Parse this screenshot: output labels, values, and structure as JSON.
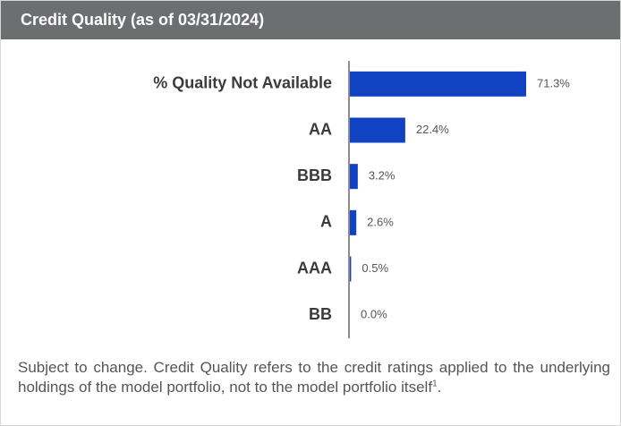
{
  "chart_data": {
    "type": "bar",
    "orientation": "horizontal",
    "title": "Credit Quality (as of 03/31/2024)",
    "categories": [
      "% Quality Not Available",
      "AA",
      "BBB",
      "A",
      "AAA",
      "BB"
    ],
    "values": [
      71.3,
      22.4,
      3.2,
      2.6,
      0.5,
      0.0
    ],
    "value_labels": [
      "71.3%",
      "22.4%",
      "3.2%",
      "2.6%",
      "0.5%",
      "0.0%"
    ],
    "color": "#1142c2",
    "footnote": {
      "text": "Subject to change. Credit Quality refers to the credit ratings applied to the underlying holdings of the model portfolio, not to the model portfolio itself",
      "sup": "1",
      "end": "."
    }
  }
}
